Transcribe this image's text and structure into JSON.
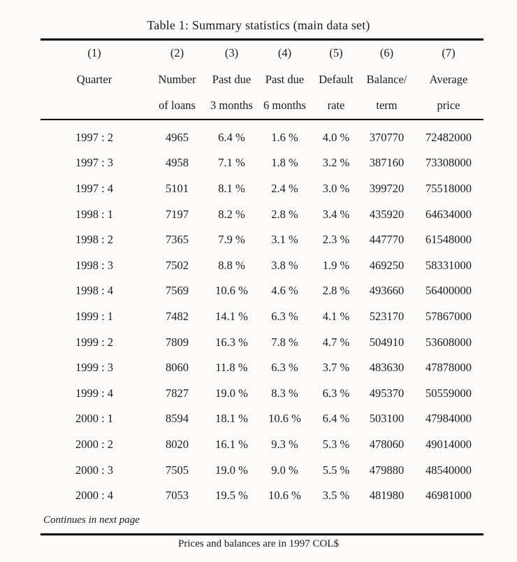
{
  "page": {
    "title": "Table 1: Summary statistics (main data set)",
    "continuation_note": "Continues in next page",
    "footnote": "Prices and balances are in 1997 COL$"
  },
  "table": {
    "column_numbers": [
      "(1)",
      "(2)",
      "(3)",
      "(4)",
      "(5)",
      "(6)",
      "(7)"
    ],
    "header_line1": [
      "Quarter",
      "Number",
      "Past due",
      "Past due",
      "Default",
      "Balance/",
      "Average"
    ],
    "header_line2": [
      "",
      "of loans",
      "3 months",
      "6 months",
      "rate",
      "term",
      "price"
    ],
    "rows": [
      [
        "1997 : 2",
        "4965",
        "6.4 %",
        "1.6 %",
        "4.0 %",
        "370770",
        "72482000"
      ],
      [
        "1997 : 3",
        "4958",
        "7.1 %",
        "1.8 %",
        "3.2 %",
        "387160",
        "73308000"
      ],
      [
        "1997 : 4",
        "5101",
        "8.1 %",
        "2.4 %",
        "3.0 %",
        "399720",
        "75518000"
      ],
      [
        "1998 : 1",
        "7197",
        "8.2 %",
        "2.8 %",
        "3.4 %",
        "435920",
        "64634000"
      ],
      [
        "1998 : 2",
        "7365",
        "7.9 %",
        "3.1 %",
        "2.3 %",
        "447770",
        "61548000"
      ],
      [
        "1998 : 3",
        "7502",
        "8.8 %",
        "3.8 %",
        "1.9 %",
        "469250",
        "58331000"
      ],
      [
        "1998 : 4",
        "7569",
        "10.6 %",
        "4.6 %",
        "2.8 %",
        "493660",
        "56400000"
      ],
      [
        "1999 : 1",
        "7482",
        "14.1 %",
        "6.3 %",
        "4.1 %",
        "523170",
        "57867000"
      ],
      [
        "1999 : 2",
        "7809",
        "16.3 %",
        "7.8 %",
        "4.7 %",
        "504910",
        "53608000"
      ],
      [
        "1999 : 3",
        "8060",
        "11.8 %",
        "6.3 %",
        "3.7 %",
        "483630",
        "47878000"
      ],
      [
        "1999 : 4",
        "7827",
        "19.0 %",
        "8.3 %",
        "6.3 %",
        "495370",
        "50559000"
      ],
      [
        "2000 : 1",
        "8594",
        "18.1 %",
        "10.6 %",
        "6.4 %",
        "503100",
        "47984000"
      ],
      [
        "2000 : 2",
        "8020",
        "16.1 %",
        "9.3 %",
        "5.3 %",
        "478060",
        "49014000"
      ],
      [
        "2000 : 3",
        "7505",
        "19.0 %",
        "9.0 %",
        "5.5 %",
        "479880",
        "48540000"
      ],
      [
        "2000 : 4",
        "7053",
        "19.5 %",
        "10.6 %",
        "3.5 %",
        "481980",
        "46981000"
      ]
    ]
  }
}
